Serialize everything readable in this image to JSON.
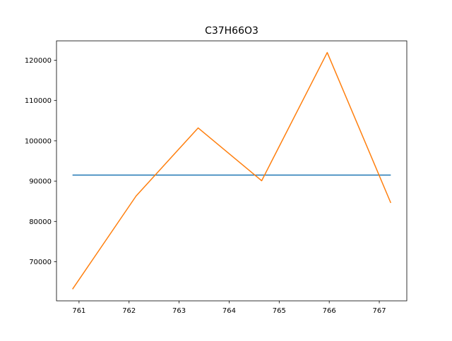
{
  "chart_data": {
    "type": "line",
    "title": "C37H66O3",
    "xlabel": "",
    "ylabel": "",
    "xlim": [
      760.55,
      767.55
    ],
    "ylim": [
      60300,
      124800
    ],
    "xticks": [
      761,
      762,
      763,
      764,
      765,
      766,
      767
    ],
    "yticks": [
      70000,
      80000,
      90000,
      100000,
      110000,
      120000
    ],
    "grid": false,
    "series": [
      {
        "color": "#1f77b4",
        "x": [
          760.87,
          767.23
        ],
        "y": [
          91500,
          91500
        ]
      },
      {
        "color": "#ff7f0e",
        "x": [
          760.87,
          762.14,
          763.38,
          764.65,
          765.96,
          767.23
        ],
        "y": [
          63200,
          86300,
          103200,
          90100,
          121900,
          84600
        ]
      }
    ]
  }
}
